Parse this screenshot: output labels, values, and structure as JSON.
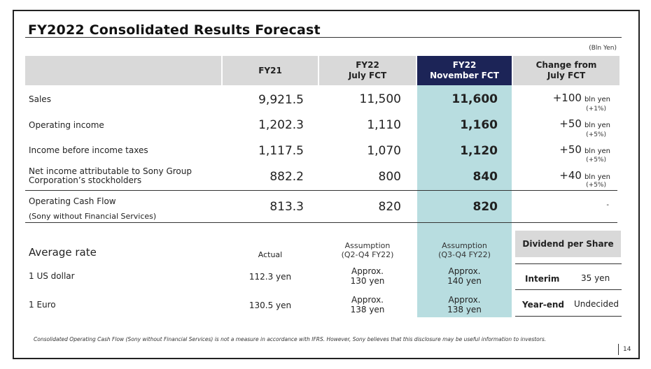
{
  "title": "FY2022 Consolidated Results Forecast",
  "unit": "(Bln Yen)",
  "headers": {
    "fy21": "FY21",
    "fy22_july_1": "FY22",
    "fy22_july_2": "July FCT",
    "fy22_nov_1": "FY22",
    "fy22_nov_2": "November FCT",
    "change_1": "Change from",
    "change_2": "July FCT"
  },
  "rows": [
    {
      "label": "Sales",
      "fy21": "9,921.5",
      "july": "11,500",
      "nov": "11,600",
      "change": "+100",
      "change_unit": "bln yen",
      "pct": "(+1%)"
    },
    {
      "label": "Operating income",
      "fy21": "1,202.3",
      "july": "1,110",
      "nov": "1,160",
      "change": "+50",
      "change_unit": "bln yen",
      "pct": "(+5%)"
    },
    {
      "label": "Income before income taxes",
      "fy21": "1,117.5",
      "july": "1,070",
      "nov": "1,120",
      "change": "+50",
      "change_unit": "bln yen",
      "pct": "(+5%)"
    },
    {
      "label1": "Net income attributable to Sony Group",
      "label2": "Corporation’s stockholders",
      "fy21": "882.2",
      "july": "800",
      "nov": "840",
      "change": "+40",
      "change_unit": "bln yen",
      "pct": "(+5%)"
    },
    {
      "label1": "Operating Cash Flow",
      "label2": "(Sony without Financial Services)",
      "fy21": "813.3",
      "july": "820",
      "nov": "820",
      "change": "-"
    }
  ],
  "rates": {
    "title": "Average rate",
    "actual": "Actual",
    "assump_july_1": "Assumption",
    "assump_july_2": "(Q2-Q4 FY22)",
    "assump_nov_1": "Assumption",
    "assump_nov_2": "(Q3-Q4 FY22)",
    "usd": {
      "label": "1 US dollar",
      "actual": "112.3 yen",
      "july_1": "Approx.",
      "july_2": "130 yen",
      "nov_1": "Approx.",
      "nov_2": "140 yen"
    },
    "eur": {
      "label": "1 Euro",
      "actual": "130.5 yen",
      "july_1": "Approx.",
      "july_2": "138 yen",
      "nov_1": "Approx.",
      "nov_2": "138 yen"
    }
  },
  "dividend": {
    "title": "Dividend per Share",
    "interim_label": "Interim",
    "interim_value": "35 yen",
    "yearend_label": "Year-end",
    "yearend_value": "Undecided"
  },
  "footnote": "Consolidated Operating Cash Flow (Sony without Financial Services) is not a measure in accordance with IFRS.  However, Sony believes that this disclosure may be useful information to investors.",
  "page_number": "14"
}
